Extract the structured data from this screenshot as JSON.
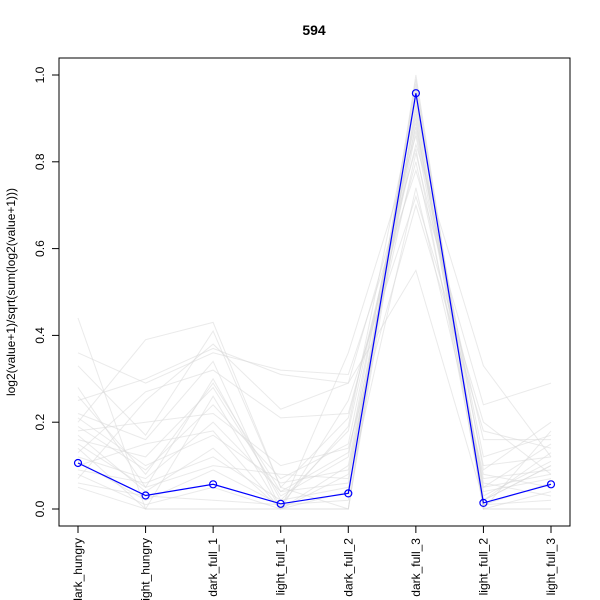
{
  "chart_data": {
    "type": "line",
    "title": "594",
    "ylabel": "log2(value+1)/sqrt(sum(log2(value+1)))",
    "xlabel": "",
    "categories": [
      "dark_hungry",
      "light_hungry",
      "dark_full_1",
      "light_full_1",
      "dark_full_2",
      "dark_full_3",
      "light_full_2",
      "light_full_3"
    ],
    "ylim": [
      0,
      1.0
    ],
    "yticks": [
      "0.0",
      "0.2",
      "0.4",
      "0.6",
      "0.8",
      "1.0"
    ],
    "grid": false,
    "highlight_color": "#0000ff",
    "background_color": "#d9d9d9",
    "series": [
      {
        "values": [
          0.106,
          0.031,
          0.057,
          0.012,
          0.036,
          0.958,
          0.014,
          0.057
        ]
      }
    ],
    "background_series": [
      [
        0.44,
        0.0,
        0.0,
        0.0,
        0.0,
        0.97,
        0.0,
        0.0
      ],
      [
        0.36,
        0.29,
        0.36,
        0.32,
        0.31,
        0.78,
        0.24,
        0.29
      ],
      [
        0.33,
        0.17,
        0.41,
        0.05,
        0.21,
        0.84,
        0.33,
        0.12
      ],
      [
        0.28,
        0.05,
        0.3,
        0.02,
        0.18,
        0.88,
        0.12,
        0.17
      ],
      [
        0.25,
        0.3,
        0.37,
        0.31,
        0.29,
        0.55,
        0.02,
        0.1
      ],
      [
        0.22,
        0.16,
        0.34,
        0.0,
        0.25,
        0.72,
        0.2,
        0.08
      ],
      [
        0.2,
        0.39,
        0.43,
        0.05,
        0.0,
        0.93,
        0.09,
        0.2
      ],
      [
        0.19,
        0.09,
        0.24,
        0.07,
        0.15,
        0.9,
        0.0,
        0.18
      ],
      [
        0.17,
        0.04,
        0.14,
        0.0,
        0.36,
        0.86,
        0.06,
        0.03
      ],
      [
        0.16,
        0.12,
        0.28,
        0.03,
        0.12,
        0.94,
        0.05,
        0.15
      ],
      [
        0.14,
        0.0,
        0.26,
        0.0,
        0.1,
        0.92,
        0.03,
        0.11
      ],
      [
        0.13,
        0.27,
        0.32,
        0.21,
        0.22,
        0.8,
        0.07,
        0.09
      ],
      [
        0.12,
        0.07,
        0.2,
        0.04,
        0.06,
        0.96,
        0.01,
        0.06
      ],
      [
        0.11,
        0.02,
        0.09,
        0.01,
        0.19,
        0.95,
        0.02,
        0.13
      ],
      [
        0.1,
        0.15,
        0.18,
        0.0,
        0.08,
        0.91,
        0.04,
        0.07
      ],
      [
        0.09,
        0.06,
        0.12,
        0.02,
        0.05,
        0.74,
        0.08,
        0.05
      ],
      [
        0.08,
        0.01,
        0.05,
        0.0,
        0.04,
        0.99,
        0.0,
        0.04
      ],
      [
        0.07,
        0.25,
        0.38,
        0.23,
        0.29,
        0.83,
        0.02,
        0.1
      ],
      [
        0.06,
        0.03,
        0.02,
        0.01,
        0.02,
        0.98,
        0.01,
        0.02
      ],
      [
        0.05,
        0.0,
        0.0,
        0.0,
        0.0,
        1.0,
        0.0,
        0.0
      ],
      [
        0.18,
        0.2,
        0.22,
        0.1,
        0.14,
        0.7,
        0.18,
        0.14
      ],
      [
        0.21,
        0.1,
        0.17,
        0.06,
        0.09,
        0.87,
        0.1,
        0.12
      ],
      [
        0.26,
        0.08,
        0.29,
        0.04,
        0.13,
        0.82,
        0.16,
        0.16
      ],
      [
        0.15,
        0.05,
        0.1,
        0.08,
        0.07,
        0.89,
        0.05,
        0.08
      ]
    ]
  }
}
